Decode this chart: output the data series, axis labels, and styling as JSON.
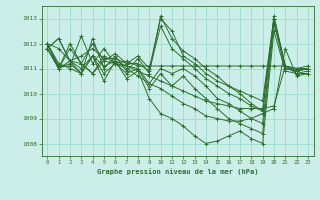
{
  "title": "Graphe pression niveau de la mer (hPa)",
  "bg_color": "#cceee8",
  "grid_color": "#99ddcc",
  "line_color": "#2d6e2d",
  "xlim": [
    -0.5,
    23.5
  ],
  "ylim": [
    1007.5,
    1013.5
  ],
  "yticks": [
    1008,
    1009,
    1010,
    1011,
    1012,
    1013
  ],
  "xticks": [
    0,
    1,
    2,
    3,
    4,
    5,
    6,
    7,
    8,
    9,
    10,
    11,
    12,
    13,
    14,
    15,
    16,
    17,
    18,
    19,
    20,
    21,
    22,
    23
  ],
  "series": [
    [
      1012.0,
      1011.1,
      1011.1,
      1012.3,
      1011.2,
      1011.8,
      1011.2,
      1011.3,
      1011.1,
      1011.1,
      1011.1,
      1011.1,
      1011.1,
      1011.1,
      1011.1,
      1011.1,
      1011.1,
      1011.1,
      1011.1,
      1011.1,
      1011.1,
      1011.1,
      1011.0,
      1011.0
    ],
    [
      1012.0,
      1011.0,
      1012.0,
      1011.2,
      1010.8,
      1011.5,
      1011.2,
      1011.1,
      1010.9,
      1010.7,
      1010.5,
      1010.3,
      1010.1,
      1009.9,
      1009.7,
      1009.6,
      1009.5,
      1009.4,
      1009.4,
      1009.4,
      1009.5,
      1011.1,
      1010.8,
      1010.9
    ],
    [
      1012.0,
      1011.0,
      1011.8,
      1011.2,
      1010.8,
      1011.3,
      1011.2,
      1011.0,
      1010.7,
      1010.4,
      1010.2,
      1009.9,
      1009.6,
      1009.4,
      1009.1,
      1009.0,
      1008.9,
      1008.9,
      1009.0,
      1009.2,
      1009.4,
      1011.8,
      1010.7,
      1010.8
    ],
    [
      1011.8,
      1012.2,
      1011.3,
      1011.2,
      1012.0,
      1011.3,
      1011.6,
      1011.2,
      1011.5,
      1011.0,
      1013.0,
      1012.5,
      1011.5,
      1011.2,
      1010.8,
      1010.5,
      1010.3,
      1010.1,
      1009.9,
      1009.7,
      1013.0,
      1011.1,
      1010.9,
      1011.0
    ],
    [
      1011.8,
      1012.2,
      1011.3,
      1011.5,
      1011.8,
      1011.4,
      1011.4,
      1011.2,
      1011.2,
      1010.9,
      1012.7,
      1011.8,
      1011.4,
      1011.0,
      1010.6,
      1010.3,
      1010.0,
      1009.8,
      1009.5,
      1009.3,
      1013.0,
      1011.0,
      1010.9,
      1011.0
    ],
    [
      1012.0,
      1011.8,
      1011.3,
      1010.8,
      1012.2,
      1011.0,
      1011.5,
      1010.9,
      1011.4,
      1010.8,
      1013.1,
      1012.2,
      1011.7,
      1011.4,
      1011.0,
      1010.7,
      1010.3,
      1010.0,
      1009.6,
      1009.3,
      1013.1,
      1011.1,
      1011.0,
      1011.1
    ],
    [
      1011.8,
      1011.0,
      1011.3,
      1011.0,
      1011.5,
      1011.1,
      1011.3,
      1011.1,
      1011.0,
      1010.4,
      1011.0,
      1010.8,
      1011.0,
      1010.7,
      1010.3,
      1009.8,
      1009.6,
      1009.3,
      1009.0,
      1008.8,
      1013.0,
      1011.1,
      1010.9,
      1011.0
    ],
    [
      1011.8,
      1011.0,
      1011.2,
      1010.8,
      1011.5,
      1010.8,
      1011.2,
      1010.8,
      1011.0,
      1010.2,
      1010.8,
      1010.3,
      1010.7,
      1010.2,
      1009.8,
      1009.4,
      1009.0,
      1008.8,
      1008.6,
      1008.4,
      1012.8,
      1011.0,
      1010.9,
      1011.0
    ],
    [
      1012.0,
      1011.2,
      1011.0,
      1010.8,
      1011.5,
      1010.5,
      1011.3,
      1010.6,
      1010.9,
      1009.8,
      1009.2,
      1009.0,
      1008.7,
      1008.3,
      1008.0,
      1008.1,
      1008.3,
      1008.5,
      1008.2,
      1008.0,
      1012.5,
      1010.9,
      1010.8,
      1010.8
    ]
  ]
}
